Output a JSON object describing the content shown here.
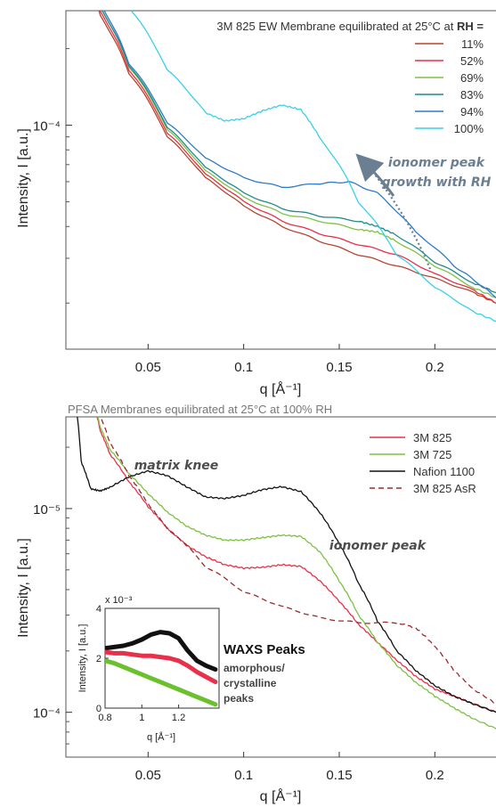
{
  "chart_data": [
    {
      "type": "line",
      "title": "3M 825 EW Membrane equilibrated at 25°C at RH =",
      "title_emphasis": "RH =",
      "xlabel": "q [Å⁻¹]",
      "ylabel": "Intensity, I [a.u.]",
      "xlim": [
        0.007,
        0.232
      ],
      "ylim_log10": [
        -4.88,
        -3.55
      ],
      "x_ticks": [
        "0.05",
        "0.1",
        "0.15",
        "0.2"
      ],
      "y_ticks": [
        "10⁻⁴"
      ],
      "legend_position": "top-right",
      "series": [
        {
          "name": "11%",
          "color": "#b5452f",
          "x": [
            0.015,
            0.025,
            0.04,
            0.06,
            0.08,
            0.1,
            0.12,
            0.14,
            0.16,
            0.18,
            0.2,
            0.22,
            0.232
          ],
          "y": [
            0.00043,
            0.00027,
            0.00016,
            9e-05,
            6.2e-05,
            4.8e-05,
            4e-05,
            3.5e-05,
            3.1e-05,
            2.8e-05,
            2.5e-05,
            2.2e-05,
            2e-05
          ]
        },
        {
          "name": "52%",
          "color": "#e8304a",
          "x": [
            0.015,
            0.025,
            0.04,
            0.06,
            0.08,
            0.1,
            0.12,
            0.14,
            0.16,
            0.18,
            0.2,
            0.22,
            0.232
          ],
          "y": [
            0.00044,
            0.00028,
            0.000165,
            9.3e-05,
            6.4e-05,
            5e-05,
            4.2e-05,
            3.75e-05,
            3.4e-05,
            3.1e-05,
            2.6e-05,
            2.25e-05,
            2e-05
          ]
        },
        {
          "name": "69%",
          "color": "#7dc242",
          "x": [
            0.015,
            0.025,
            0.04,
            0.06,
            0.08,
            0.1,
            0.12,
            0.14,
            0.16,
            0.17,
            0.18,
            0.2,
            0.22,
            0.232
          ],
          "y": [
            0.00045,
            0.00029,
            0.00017,
            9.6e-05,
            6.6e-05,
            5.2e-05,
            4.5e-05,
            4.2e-05,
            3.9e-05,
            3.8e-05,
            3.5e-05,
            2.8e-05,
            2.3e-05,
            2.1e-05
          ]
        },
        {
          "name": "83%",
          "color": "#1e8a8a",
          "x": [
            0.015,
            0.025,
            0.04,
            0.06,
            0.08,
            0.1,
            0.12,
            0.14,
            0.16,
            0.17,
            0.18,
            0.2,
            0.22,
            0.232
          ],
          "y": [
            0.00045,
            0.00029,
            0.000172,
            9.8e-05,
            6.8e-05,
            5.4e-05,
            4.7e-05,
            4.4e-05,
            4.2e-05,
            4e-05,
            3.7e-05,
            2.9e-05,
            2.4e-05,
            2.2e-05
          ]
        },
        {
          "name": "94%",
          "color": "#2d7bc6",
          "x": [
            0.015,
            0.025,
            0.04,
            0.06,
            0.08,
            0.1,
            0.12,
            0.14,
            0.155,
            0.17,
            0.19,
            0.21,
            0.232
          ],
          "y": [
            0.00046,
            0.0003,
            0.000175,
            0.000102,
            7.4e-05,
            6.2e-05,
            5.7e-05,
            5.9e-05,
            6e-05,
            5.4e-05,
            3.8e-05,
            2.8e-05,
            2.1e-05
          ]
        },
        {
          "name": "100%",
          "color": "#38d1e6",
          "x": [
            0.02,
            0.03,
            0.04,
            0.06,
            0.08,
            0.09,
            0.1,
            0.11,
            0.12,
            0.13,
            0.14,
            0.16,
            0.18,
            0.2,
            0.22,
            0.232
          ],
          "y": [
            0.00072,
            0.00044,
            0.00029,
            0.000165,
            0.000112,
            0.000104,
            0.000106,
            0.000114,
            0.00012,
            0.000115,
            8.9e-05,
            5e-05,
            3.1e-05,
            2.3e-05,
            1.85e-05,
            1.7e-05
          ]
        }
      ],
      "annotations": [
        {
          "text_lines": [
            "ionomer peak",
            "growth with RH"
          ]
        }
      ]
    },
    {
      "type": "line",
      "title": "PFSA Membranes equilibrated at 25°C at 100% RH",
      "xlabel": "q [Å⁻¹]",
      "ylabel": "Intensity, I [a.u.]",
      "xlim": [
        0.007,
        0.232
      ],
      "ylim_log10": [
        -5.22,
        -3.55
      ],
      "x_ticks": [
        "0.05",
        "0.1",
        "0.15",
        "0.2"
      ],
      "y_ticks": [
        "10⁻⁴",
        "10⁻⁵"
      ],
      "legend_position": "top-right",
      "series": [
        {
          "name": "3M 825",
          "color": "#e8304a",
          "x": [
            0.02,
            0.025,
            0.03,
            0.04,
            0.05,
            0.06,
            0.07,
            0.08,
            0.09,
            0.1,
            0.11,
            0.12,
            0.13,
            0.14,
            0.15,
            0.16,
            0.17,
            0.18,
            0.19,
            0.2,
            0.21,
            0.22,
            0.232
          ],
          "y": [
            0.00037,
            0.00024,
            0.000185,
            0.000135,
            0.000102,
            8e-05,
            6.6e-05,
            5.8e-05,
            5.3e-05,
            5.1e-05,
            5.15e-05,
            5.3e-05,
            5.2e-05,
            4.4e-05,
            3.5e-05,
            2.7e-05,
            2.2e-05,
            1.8e-05,
            1.5e-05,
            1.3e-05,
            1.2e-05,
            1.1e-05,
            1e-05
          ]
        },
        {
          "name": "3M 725",
          "color": "#7dc242",
          "x": [
            0.02,
            0.025,
            0.03,
            0.04,
            0.05,
            0.06,
            0.07,
            0.08,
            0.09,
            0.1,
            0.11,
            0.12,
            0.13,
            0.14,
            0.15,
            0.16,
            0.17,
            0.18,
            0.19,
            0.2,
            0.21,
            0.22,
            0.232
          ],
          "y": [
            0.00037,
            0.00025,
            0.000195,
            0.000148,
            0.000118,
            9.6e-05,
            8.2e-05,
            7.4e-05,
            7e-05,
            7e-05,
            7.2e-05,
            7.4e-05,
            7.3e-05,
            6.1e-05,
            4.4e-05,
            3e-05,
            2.2e-05,
            1.7e-05,
            1.4e-05,
            1.2e-05,
            1.05e-05,
            9.3e-06,
            8.3e-06
          ]
        },
        {
          "name": "Nafion 1100",
          "color": "#111111",
          "x": [
            0.01,
            0.015,
            0.02,
            0.025,
            0.03,
            0.04,
            0.05,
            0.06,
            0.07,
            0.08,
            0.09,
            0.1,
            0.11,
            0.12,
            0.13,
            0.14,
            0.15,
            0.16,
            0.17,
            0.18,
            0.19,
            0.2,
            0.21,
            0.22,
            0.232
          ],
          "y": [
            0.00045,
            0.00017,
            0.000125,
            0.000122,
            0.000127,
            0.000143,
            0.000153,
            0.000145,
            0.000128,
            0.000114,
            0.000112,
            0.000116,
            0.000124,
            0.000128,
            0.000121,
            9.5e-05,
            6.7e-05,
            4.3e-05,
            2.8e-05,
            2e-05,
            1.6e-05,
            1.35e-05,
            1.2e-05,
            1.1e-05,
            1e-05
          ]
        },
        {
          "name": "3M 825 AsR",
          "color": "#9b2b2b",
          "dashed": true,
          "x": [
            0.02,
            0.03,
            0.04,
            0.05,
            0.06,
            0.08,
            0.1,
            0.12,
            0.14,
            0.16,
            0.18,
            0.19,
            0.2,
            0.21,
            0.22,
            0.232
          ],
          "y": [
            0.00036,
            0.00021,
            0.000145,
            0.000105,
            8e-05,
            5.2e-05,
            3.9e-05,
            3.3e-05,
            2.9e-05,
            2.75e-05,
            2.75e-05,
            2.6e-05,
            2.1e-05,
            1.6e-05,
            1.3e-05,
            1.1e-05
          ]
        }
      ],
      "annotations": [
        {
          "text": "matrix knee"
        },
        {
          "text": "ionomer peak"
        }
      ]
    },
    {
      "type": "line",
      "title": "WAXS Peaks",
      "subtitle_lines": [
        "amorphous/",
        "crystalline",
        "peaks"
      ],
      "xlabel": "q [Å⁻¹]",
      "ylabel": "Intensity, I [a.u.]",
      "y_multiplier": "x 10⁻³",
      "xlim": [
        0.8,
        1.42
      ],
      "ylim": [
        0,
        4
      ],
      "x_ticks": [
        0.8,
        1.0,
        1.2
      ],
      "x_tick_labels": [
        "0.8",
        "1",
        "1.2"
      ],
      "y_ticks": [
        0,
        2,
        4
      ],
      "y_tick_labels": [
        "0",
        "2",
        "4"
      ],
      "series": [
        {
          "name": "Nafion 1100",
          "color": "#111111",
          "x": [
            0.8,
            0.85,
            0.9,
            0.95,
            1.0,
            1.05,
            1.1,
            1.15,
            1.2,
            1.25,
            1.3,
            1.35,
            1.4
          ],
          "y": [
            2.4,
            2.45,
            2.5,
            2.6,
            2.75,
            2.95,
            3.05,
            3.0,
            2.8,
            2.3,
            1.9,
            1.7,
            1.55
          ]
        },
        {
          "name": "3M 825",
          "color": "#e8304a",
          "x": [
            0.8,
            0.85,
            0.9,
            0.95,
            1.0,
            1.05,
            1.1,
            1.15,
            1.2,
            1.25,
            1.3,
            1.35,
            1.4
          ],
          "y": [
            2.25,
            2.2,
            2.2,
            2.15,
            2.1,
            2.1,
            2.05,
            2.0,
            1.9,
            1.7,
            1.45,
            1.25,
            1.05
          ]
        },
        {
          "name": "3M 725",
          "color": "#6bc02d",
          "x": [
            0.8,
            0.85,
            0.9,
            0.95,
            1.0,
            1.05,
            1.1,
            1.15,
            1.2,
            1.25,
            1.3,
            1.35,
            1.4
          ],
          "y": [
            1.9,
            1.8,
            1.65,
            1.5,
            1.35,
            1.2,
            1.05,
            0.9,
            0.75,
            0.6,
            0.45,
            0.3,
            0.15
          ]
        }
      ]
    }
  ]
}
